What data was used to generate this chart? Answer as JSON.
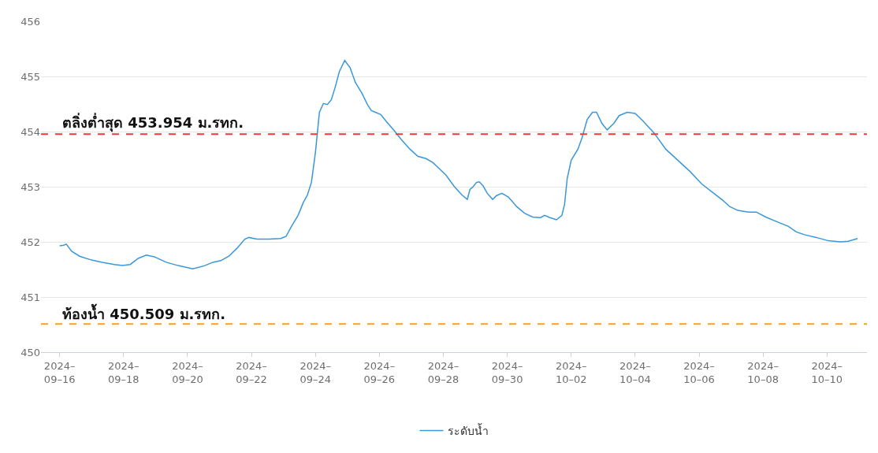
{
  "chart_data": {
    "type": "line",
    "x": [
      "2024-09-16T00:00",
      "2024-09-16T03:00",
      "2024-09-16T05:00",
      "2024-09-16T09:00",
      "2024-09-16T15:00",
      "2024-09-17T00:00",
      "2024-09-17T08:00",
      "2024-09-17T17:00",
      "2024-09-17T23:00",
      "2024-09-18T05:00",
      "2024-09-18T11:00",
      "2024-09-18T17:00",
      "2024-09-18T23:00",
      "2024-09-19T08:00",
      "2024-09-19T17:00",
      "2024-09-20T04:00",
      "2024-09-20T13:00",
      "2024-09-20T19:00",
      "2024-09-21T01:00",
      "2024-09-21T07:00",
      "2024-09-21T13:00",
      "2024-09-21T19:00",
      "2024-09-21T22:00",
      "2024-09-22T04:00",
      "2024-09-22T13:00",
      "2024-09-22T22:00",
      "2024-09-23T02:00",
      "2024-09-23T06:00",
      "2024-09-23T11:00",
      "2024-09-23T15:00",
      "2024-09-23T18:00",
      "2024-09-23T21:00",
      "2024-09-24T00:00",
      "2024-09-24T03:00",
      "2024-09-24T06:00",
      "2024-09-24T09:00",
      "2024-09-24T12:00",
      "2024-09-24T15:00",
      "2024-09-24T18:00",
      "2024-09-24T22:00",
      "2024-09-25T02:00",
      "2024-09-25T06:00",
      "2024-09-25T11:00",
      "2024-09-25T15:00",
      "2024-09-25T18:00",
      "2024-09-25T21:00",
      "2024-09-26T01:00",
      "2024-09-26T05:00",
      "2024-09-26T11:00",
      "2024-09-26T17:00",
      "2024-09-26T23:00",
      "2024-09-27T05:00",
      "2024-09-27T11:00",
      "2024-09-27T16:00",
      "2024-09-27T20:00",
      "2024-09-28T02:00",
      "2024-09-28T08:00",
      "2024-09-28T14:00",
      "2024-09-28T18:00",
      "2024-09-28T20:00",
      "2024-09-28T22:00",
      "2024-09-29T01:00",
      "2024-09-29T03:00",
      "2024-09-29T06:00",
      "2024-09-29T09:00",
      "2024-09-29T13:00",
      "2024-09-29T16:00",
      "2024-09-29T20:00",
      "2024-09-30T01:00",
      "2024-09-30T07:00",
      "2024-09-30T13:00",
      "2024-09-30T19:00",
      "2024-10-01T01:00",
      "2024-10-01T04:00",
      "2024-10-01T08:00",
      "2024-10-01T13:00",
      "2024-10-01T17:00",
      "2024-10-01T19:00",
      "2024-10-01T21:00",
      "2024-10-02T00:00",
      "2024-10-02T05:00",
      "2024-10-02T08:00",
      "2024-10-02T12:00",
      "2024-10-02T16:00",
      "2024-10-02T19:00",
      "2024-10-02T23:00",
      "2024-10-03T03:00",
      "2024-10-03T08:00",
      "2024-10-03T12:00",
      "2024-10-03T18:00",
      "2024-10-04T00:00",
      "2024-10-04T06:00",
      "2024-10-04T14:00",
      "2024-10-04T23:00",
      "2024-10-05T08:00",
      "2024-10-05T17:00",
      "2024-10-06T02:00",
      "2024-10-06T11:00",
      "2024-10-06T17:00",
      "2024-10-06T23:00",
      "2024-10-07T05:00",
      "2024-10-07T13:00",
      "2024-10-07T19:00",
      "2024-10-08T02:00",
      "2024-10-08T10:00",
      "2024-10-08T19:00",
      "2024-10-09T01:00",
      "2024-10-09T07:00",
      "2024-10-09T16:00",
      "2024-10-10T01:00",
      "2024-10-10T10:00",
      "2024-10-10T16:00",
      "2024-10-10T23:00"
    ],
    "series": [
      {
        "name": "ระดับน้ำ",
        "color": "#3a97d9",
        "values": [
          451.93,
          451.94,
          451.96,
          451.83,
          451.74,
          451.67,
          451.63,
          451.59,
          451.57,
          451.59,
          451.7,
          451.76,
          451.73,
          451.63,
          451.57,
          451.51,
          451.57,
          451.63,
          451.66,
          451.74,
          451.88,
          452.05,
          452.08,
          452.05,
          452.05,
          452.06,
          452.1,
          452.28,
          452.48,
          452.72,
          452.85,
          453.08,
          453.62,
          454.35,
          454.51,
          454.49,
          454.58,
          454.82,
          455.09,
          455.29,
          455.16,
          454.89,
          454.69,
          454.49,
          454.38,
          454.35,
          454.31,
          454.19,
          454.02,
          453.84,
          453.68,
          453.55,
          453.51,
          453.44,
          453.35,
          453.21,
          453.01,
          452.85,
          452.77,
          452.95,
          452.99,
          453.08,
          453.09,
          453.01,
          452.88,
          452.77,
          452.84,
          452.88,
          452.81,
          452.64,
          452.52,
          452.45,
          452.44,
          452.48,
          452.44,
          452.4,
          452.48,
          452.68,
          453.15,
          453.48,
          453.68,
          453.88,
          454.22,
          454.35,
          454.35,
          454.15,
          454.03,
          454.15,
          454.29,
          454.35,
          454.33,
          454.19,
          453.98,
          453.68,
          453.48,
          453.28,
          453.05,
          452.88,
          452.77,
          452.64,
          452.57,
          452.54,
          452.54,
          452.45,
          452.37,
          452.28,
          452.18,
          452.13,
          452.08,
          452.02,
          452.0,
          452.01,
          452.06
        ]
      }
    ],
    "xlim": [
      "2024-09-15T10:00",
      "2024-10-11T06:00"
    ],
    "xticks": [
      {
        "value": "2024-09-16",
        "label": "2024–\n09–16"
      },
      {
        "value": "2024-09-18",
        "label": "2024–\n09–18"
      },
      {
        "value": "2024-09-20",
        "label": "2024–\n09–20"
      },
      {
        "value": "2024-09-22",
        "label": "2024–\n09–22"
      },
      {
        "value": "2024-09-24",
        "label": "2024–\n09–24"
      },
      {
        "value": "2024-09-26",
        "label": "2024–\n09–26"
      },
      {
        "value": "2024-09-28",
        "label": "2024–\n09–28"
      },
      {
        "value": "2024-09-30",
        "label": "2024–\n09–30"
      },
      {
        "value": "2024-10-02",
        "label": "2024–\n10–02"
      },
      {
        "value": "2024-10-04",
        "label": "2024–\n10–04"
      },
      {
        "value": "2024-10-06",
        "label": "2024–\n10–06"
      },
      {
        "value": "2024-10-08",
        "label": "2024–\n10–08"
      },
      {
        "value": "2024-10-10",
        "label": "2024–\n10–10"
      }
    ],
    "ylim": [
      450,
      456
    ],
    "yticks": [
      450,
      451,
      452,
      453,
      454,
      455,
      456
    ],
    "grid": "y",
    "legend": "bottom",
    "ref_lines": [
      {
        "axis": "y",
        "value": 453.954,
        "label": "ตลิ่งต่ำสุด 453.954 ม.รทก.",
        "color": "#f03a3a",
        "line_style": "dashed"
      },
      {
        "axis": "y",
        "value": 450.509,
        "label": "ท้องน้ำ 450.509 ม.รทก.",
        "color": "#f5a31a",
        "line_style": "dashed"
      }
    ]
  }
}
